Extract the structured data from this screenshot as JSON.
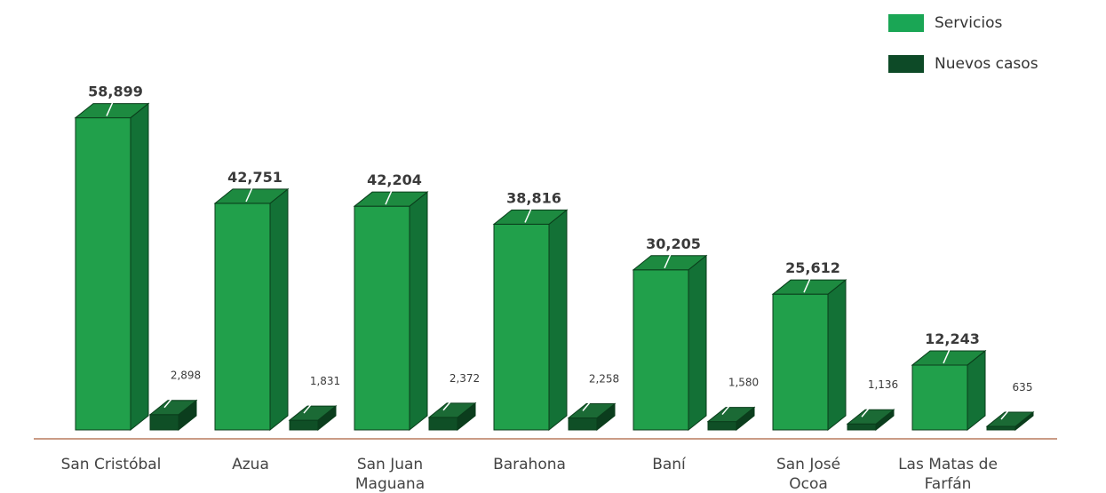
{
  "chart_data": {
    "type": "bar",
    "categories": [
      [
        "San Cristóbal"
      ],
      [
        "Azua"
      ],
      [
        "San Juan",
        "Maguana"
      ],
      [
        "Barahona"
      ],
      [
        "Baní"
      ],
      [
        "San José",
        "Ocoa"
      ],
      [
        "Las Matas de",
        "Farfán"
      ]
    ],
    "series": [
      {
        "name": "Servicios",
        "values": [
          58899,
          42751,
          42204,
          38816,
          30205,
          25612,
          12243
        ],
        "labels": [
          "58,899",
          "42,751",
          "42,204",
          "38,816",
          "30,205",
          "25,612",
          "12,243"
        ]
      },
      {
        "name": "Nuevos casos",
        "values": [
          2898,
          1831,
          2372,
          2258,
          1580,
          1136,
          635
        ],
        "labels": [
          "2,898",
          "1,831",
          "2,372",
          "2,258",
          "1,580",
          "1,136",
          "635"
        ]
      }
    ],
    "ylim": [
      0,
      60000
    ],
    "grid": false,
    "legend_position": "top-right"
  },
  "colors": {
    "servicios_front": "#21a04b",
    "servicios_side": "#137136",
    "servicios_top": "#1d8a40",
    "nuevos_front": "#0f4f26",
    "nuevos_side": "#0b3d1d",
    "nuevos_top": "#1b6a35",
    "baseline": "#b97a5f",
    "legend_servicios": "#1aa655",
    "legend_nuevos": "#0d4a27"
  }
}
